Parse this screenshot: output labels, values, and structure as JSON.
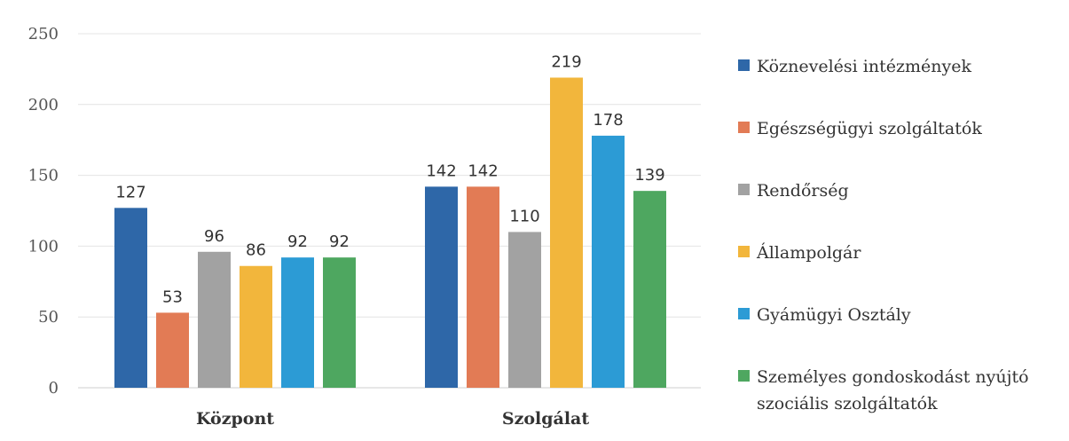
{
  "chart_data": {
    "type": "bar",
    "categories": [
      "Központ",
      "Szolgálat"
    ],
    "series": [
      {
        "name": "Köznevelési intézmények",
        "values": [
          127,
          142
        ],
        "color": "#2E67A8"
      },
      {
        "name": "Egészségügyi szolgáltatók",
        "values": [
          53,
          142
        ],
        "color": "#E27B55"
      },
      {
        "name": "Rendőrség",
        "values": [
          96,
          110
        ],
        "color": "#A2A2A2"
      },
      {
        "name": "Állampolgár",
        "values": [
          86,
          219
        ],
        "color": "#F2B63C"
      },
      {
        "name": "Gyámügyi Osztály",
        "values": [
          92,
          178
        ],
        "color": "#2C9BD5"
      },
      {
        "name": "Személyes gondoskodást nyújtó szociális szolgáltatók",
        "values": [
          92,
          139
        ],
        "color": "#4EA760"
      }
    ],
    "ylim": [
      0,
      250
    ],
    "yticks": [
      0,
      50,
      100,
      150,
      200,
      250
    ],
    "grid": true,
    "legend_position": "right",
    "data_labels": true
  }
}
